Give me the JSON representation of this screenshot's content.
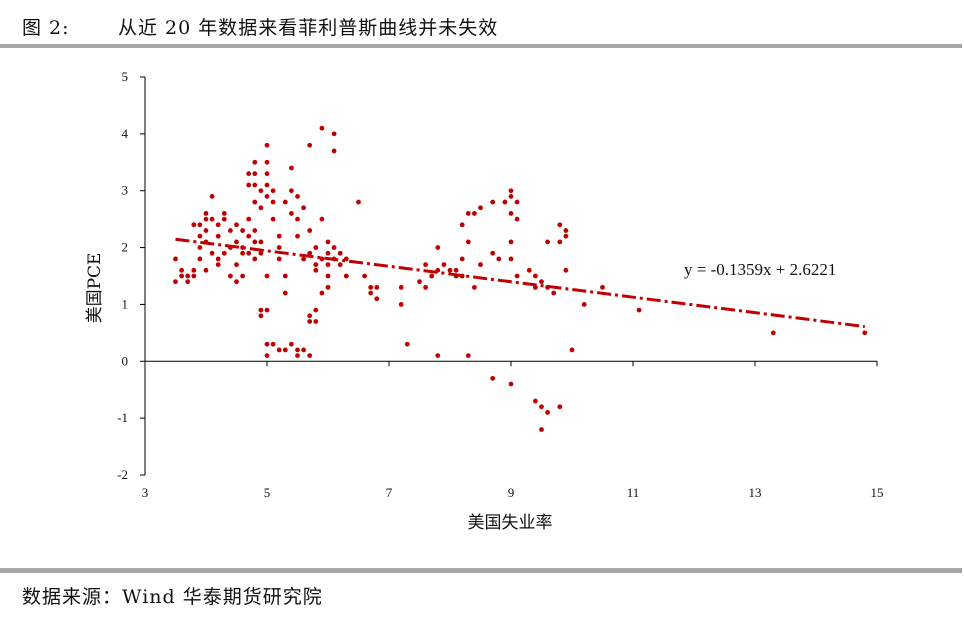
{
  "header": {
    "figure_label": "图 2:",
    "title": "从近 20 年数据来看菲利普斯曲线并未失效"
  },
  "source": "数据来源：Wind 华泰期货研究院",
  "colors": {
    "points": "#c00000",
    "trendline": "#c00000",
    "axis": "#000000",
    "rule": "#a6a6a6"
  },
  "chart_data": {
    "type": "scatter",
    "title": "",
    "xlabel": "美国失业率",
    "ylabel": "美国PCE",
    "xlim": [
      3,
      15
    ],
    "ylim": [
      -2,
      5
    ],
    "xticks": [
      3,
      5,
      7,
      9,
      11,
      13,
      15
    ],
    "yticks": [
      -2,
      -1,
      0,
      1,
      2,
      3,
      4,
      5
    ],
    "grid": false,
    "trendline": {
      "slope": -0.1359,
      "intercept": 2.6221,
      "x_range": [
        3.5,
        14.8
      ],
      "style": "dash-dot",
      "label": "y = -0.1359x + 2.6221"
    },
    "points": [
      [
        3.5,
        1.4
      ],
      [
        3.5,
        1.8
      ],
      [
        3.6,
        1.5
      ],
      [
        3.6,
        1.6
      ],
      [
        3.7,
        1.4
      ],
      [
        3.7,
        1.5
      ],
      [
        3.8,
        1.5
      ],
      [
        3.8,
        1.6
      ],
      [
        3.9,
        1.8
      ],
      [
        3.9,
        2.0
      ],
      [
        3.9,
        2.2
      ],
      [
        3.9,
        2.4
      ],
      [
        4.0,
        2.3
      ],
      [
        4.0,
        2.5
      ],
      [
        4.0,
        2.6
      ],
      [
        4.0,
        2.1
      ],
      [
        4.1,
        2.9
      ],
      [
        4.1,
        2.5
      ],
      [
        4.1,
        1.9
      ],
      [
        4.2,
        2.4
      ],
      [
        4.2,
        1.8
      ],
      [
        4.2,
        1.7
      ],
      [
        4.3,
        2.5
      ],
      [
        4.3,
        2.6
      ],
      [
        4.3,
        1.9
      ],
      [
        4.4,
        2.0
      ],
      [
        4.4,
        2.3
      ],
      [
        4.4,
        1.5
      ],
      [
        4.5,
        2.1
      ],
      [
        4.5,
        2.4
      ],
      [
        4.5,
        1.7
      ],
      [
        4.5,
        1.4
      ],
      [
        4.6,
        2.3
      ],
      [
        4.6,
        2.0
      ],
      [
        4.6,
        1.5
      ],
      [
        4.7,
        2.5
      ],
      [
        4.7,
        2.2
      ],
      [
        4.7,
        1.9
      ],
      [
        4.7,
        3.1
      ],
      [
        4.7,
        3.3
      ],
      [
        4.8,
        2.8
      ],
      [
        4.8,
        3.1
      ],
      [
        4.8,
        3.3
      ],
      [
        4.8,
        3.5
      ],
      [
        4.8,
        2.1
      ],
      [
        4.8,
        2.3
      ],
      [
        4.8,
        1.8
      ],
      [
        4.9,
        1.9
      ],
      [
        4.9,
        3.0
      ],
      [
        4.9,
        2.7
      ],
      [
        4.9,
        2.1
      ],
      [
        5.0,
        2.9
      ],
      [
        5.0,
        3.1
      ],
      [
        5.0,
        3.3
      ],
      [
        5.0,
        3.5
      ],
      [
        5.0,
        3.8
      ],
      [
        5.0,
        1.5
      ],
      [
        5.0,
        0.9
      ],
      [
        5.0,
        0.1
      ],
      [
        5.0,
        0.3
      ],
      [
        4.9,
        0.8
      ],
      [
        4.9,
        0.9
      ],
      [
        5.1,
        2.5
      ],
      [
        5.1,
        3.0
      ],
      [
        5.1,
        2.8
      ],
      [
        5.1,
        0.3
      ],
      [
        5.2,
        2.2
      ],
      [
        5.2,
        2.0
      ],
      [
        5.2,
        0.2
      ],
      [
        5.3,
        1.5
      ],
      [
        5.3,
        2.8
      ],
      [
        5.3,
        0.2
      ],
      [
        5.4,
        2.6
      ],
      [
        5.4,
        3.0
      ],
      [
        5.4,
        3.4
      ],
      [
        5.4,
        0.3
      ],
      [
        5.5,
        2.2
      ],
      [
        5.5,
        2.5
      ],
      [
        5.5,
        2.9
      ],
      [
        5.5,
        0.1
      ],
      [
        5.5,
        0.2
      ],
      [
        5.6,
        2.7
      ],
      [
        5.6,
        1.8
      ],
      [
        5.6,
        0.2
      ],
      [
        5.7,
        2.3
      ],
      [
        5.7,
        1.9
      ],
      [
        5.7,
        3.8
      ],
      [
        5.7,
        0.8
      ],
      [
        5.7,
        0.7
      ],
      [
        5.7,
        0.1
      ],
      [
        5.8,
        1.6
      ],
      [
        5.8,
        1.7
      ],
      [
        5.8,
        2.0
      ],
      [
        5.8,
        0.9
      ],
      [
        5.8,
        0.7
      ],
      [
        5.9,
        1.8
      ],
      [
        5.9,
        2.5
      ],
      [
        5.9,
        1.2
      ],
      [
        5.9,
        4.1
      ],
      [
        6.0,
        1.9
      ],
      [
        6.0,
        2.1
      ],
      [
        6.0,
        1.7
      ],
      [
        6.0,
        1.5
      ],
      [
        6.0,
        1.3
      ],
      [
        6.1,
        2.0
      ],
      [
        6.1,
        1.8
      ],
      [
        6.1,
        4.0
      ],
      [
        6.1,
        3.7
      ],
      [
        6.2,
        1.7
      ],
      [
        6.2,
        1.9
      ],
      [
        6.3,
        1.8
      ],
      [
        6.3,
        1.5
      ],
      [
        5.3,
        1.2
      ],
      [
        5.2,
        1.8
      ],
      [
        4.6,
        1.9
      ],
      [
        4.2,
        2.2
      ],
      [
        3.8,
        2.4
      ],
      [
        4.0,
        1.6
      ],
      [
        6.5,
        2.8
      ],
      [
        6.6,
        1.5
      ],
      [
        6.7,
        1.3
      ],
      [
        6.7,
        1.2
      ],
      [
        6.8,
        1.1
      ],
      [
        6.8,
        1.3
      ],
      [
        7.2,
        1.0
      ],
      [
        7.2,
        1.3
      ],
      [
        7.3,
        0.3
      ],
      [
        7.5,
        1.4
      ],
      [
        7.6,
        1.7
      ],
      [
        7.6,
        1.3
      ],
      [
        7.7,
        1.5
      ],
      [
        7.8,
        1.6
      ],
      [
        7.8,
        2.0
      ],
      [
        7.8,
        0.1
      ],
      [
        7.9,
        1.7
      ],
      [
        8.0,
        1.6
      ],
      [
        8.1,
        1.6
      ],
      [
        8.1,
        1.5
      ],
      [
        8.2,
        1.8
      ],
      [
        8.2,
        1.5
      ],
      [
        8.2,
        2.4
      ],
      [
        8.3,
        2.6
      ],
      [
        8.3,
        2.1
      ],
      [
        8.3,
        0.1
      ],
      [
        8.4,
        2.6
      ],
      [
        8.4,
        1.3
      ],
      [
        8.5,
        1.7
      ],
      [
        8.5,
        2.7
      ],
      [
        8.7,
        1.9
      ],
      [
        8.7,
        2.8
      ],
      [
        8.7,
        -0.3
      ],
      [
        8.8,
        1.8
      ],
      [
        8.9,
        2.8
      ],
      [
        9.0,
        2.9
      ],
      [
        9.0,
        3.0
      ],
      [
        9.0,
        2.6
      ],
      [
        9.0,
        2.1
      ],
      [
        9.0,
        1.8
      ],
      [
        9.0,
        -0.4
      ],
      [
        9.1,
        2.8
      ],
      [
        9.1,
        1.5
      ],
      [
        9.1,
        2.5
      ],
      [
        9.3,
        1.6
      ],
      [
        9.4,
        1.5
      ],
      [
        9.4,
        1.3
      ],
      [
        9.4,
        -0.7
      ],
      [
        9.5,
        1.4
      ],
      [
        9.5,
        -0.8
      ],
      [
        9.5,
        -1.2
      ],
      [
        9.6,
        -0.9
      ],
      [
        9.6,
        1.3
      ],
      [
        9.6,
        2.1
      ],
      [
        9.7,
        1.2
      ],
      [
        9.8,
        2.4
      ],
      [
        9.8,
        2.1
      ],
      [
        9.8,
        -0.8
      ],
      [
        9.9,
        2.2
      ],
      [
        9.9,
        2.3
      ],
      [
        9.9,
        1.6
      ],
      [
        10.0,
        0.2
      ],
      [
        10.2,
        1.0
      ],
      [
        10.5,
        1.3
      ],
      [
        11.1,
        0.9
      ],
      [
        13.3,
        0.5
      ],
      [
        14.8,
        0.5
      ]
    ]
  }
}
